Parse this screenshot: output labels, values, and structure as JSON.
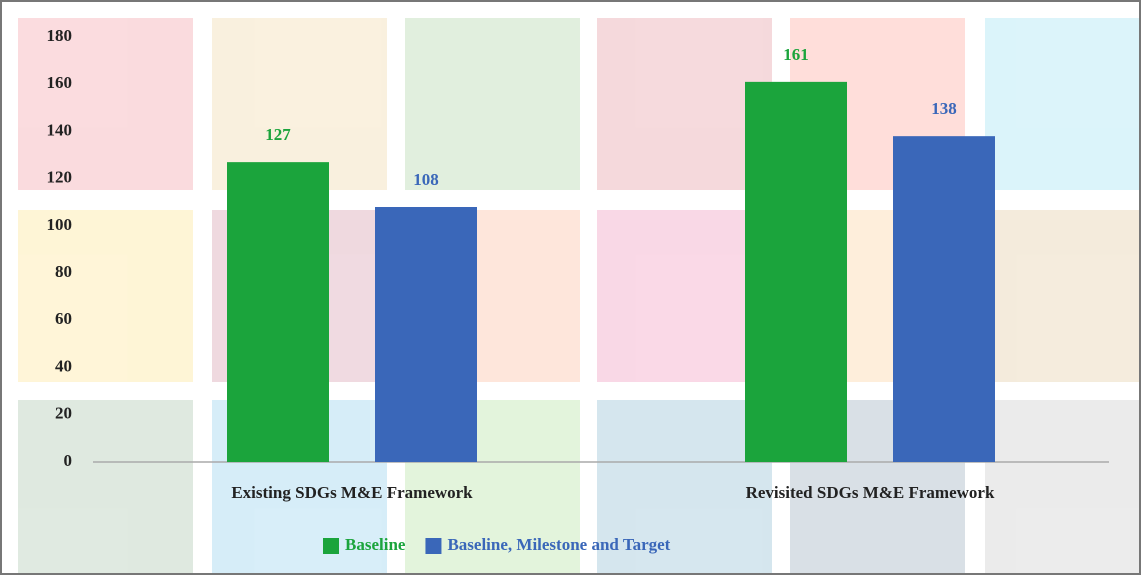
{
  "chart_data": {
    "type": "bar",
    "categories": [
      "Existing SDGs M&E Framework",
      "Revisited SDGs M&E Framework"
    ],
    "series": [
      {
        "name": "Baseline",
        "color": "#1ba43c",
        "values": [
          127,
          161
        ]
      },
      {
        "name": "Baseline, Milestone and Target",
        "color": "#3a67b9",
        "values": [
          108,
          138
        ]
      }
    ],
    "ylim": [
      0,
      180
    ],
    "yticks": [
      0,
      20,
      40,
      60,
      80,
      100,
      120,
      140,
      160,
      180
    ],
    "grid": false,
    "legend": "bottom"
  }
}
